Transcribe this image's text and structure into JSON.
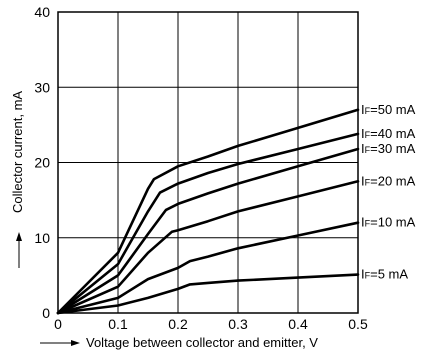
{
  "chart_data": {
    "type": "line",
    "xlabel": "Voltage between collector and emitter, V",
    "ylabel": "Collector current, mA",
    "xlim": [
      0,
      0.5
    ],
    "ylim": [
      0,
      40
    ],
    "xticks": [
      "0",
      "0.1",
      "0.2",
      "0.3",
      "0.4",
      "0.5"
    ],
    "yticks": [
      "0",
      "10",
      "20",
      "30",
      "40"
    ],
    "grid": true,
    "series": [
      {
        "name": "IF=5 mA",
        "sub": "F",
        "prefix": "I",
        "suffix": "=5 mA",
        "x": [
          0,
          0.1,
          0.15,
          0.2,
          0.22,
          0.25,
          0.3,
          0.4,
          0.5
        ],
        "y": [
          0,
          1.0,
          2.0,
          3.2,
          3.8,
          4.0,
          4.3,
          4.7,
          5.1
        ]
      },
      {
        "name": "IF=10 mA",
        "sub": "F",
        "prefix": "I",
        "suffix": "=10 mA",
        "x": [
          0,
          0.1,
          0.15,
          0.2,
          0.22,
          0.25,
          0.3,
          0.4,
          0.5
        ],
        "y": [
          0,
          2.0,
          4.5,
          6.0,
          6.9,
          7.5,
          8.6,
          10.3,
          12.0
        ]
      },
      {
        "name": "IF=20 mA",
        "sub": "F",
        "prefix": "I",
        "suffix": "=20 mA",
        "x": [
          0,
          0.1,
          0.15,
          0.19,
          0.2,
          0.25,
          0.3,
          0.4,
          0.5
        ],
        "y": [
          0,
          3.5,
          8.0,
          10.8,
          11.0,
          12.2,
          13.5,
          15.5,
          17.5
        ]
      },
      {
        "name": "IF=30 mA",
        "sub": "F",
        "prefix": "I",
        "suffix": "=30 mA",
        "x": [
          0,
          0.1,
          0.15,
          0.18,
          0.2,
          0.25,
          0.3,
          0.4,
          0.5
        ],
        "y": [
          0,
          5.0,
          10.5,
          13.7,
          14.5,
          15.9,
          17.2,
          19.5,
          21.8
        ]
      },
      {
        "name": "IF=40 mA",
        "sub": "F",
        "prefix": "I",
        "suffix": "=40 mA",
        "x": [
          0,
          0.1,
          0.15,
          0.17,
          0.2,
          0.25,
          0.3,
          0.4,
          0.5
        ],
        "y": [
          0,
          6.5,
          13.5,
          16.0,
          17.2,
          18.6,
          19.8,
          21.8,
          23.8
        ]
      },
      {
        "name": "IF=50 mA",
        "sub": "F",
        "prefix": "I",
        "suffix": "=50 mA",
        "x": [
          0,
          0.1,
          0.15,
          0.16,
          0.2,
          0.25,
          0.3,
          0.4,
          0.5
        ],
        "y": [
          0,
          8.0,
          16.5,
          17.8,
          19.5,
          20.8,
          22.2,
          24.6,
          27.0
        ]
      }
    ]
  }
}
